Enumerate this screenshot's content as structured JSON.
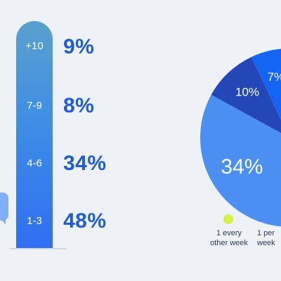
{
  "chart_data": [
    {
      "type": "bar",
      "categories": [
        "+10",
        "7-9",
        "4-6",
        "1-3"
      ],
      "values": [
        9,
        8,
        34,
        48
      ],
      "value_labels": [
        "9%",
        "8%",
        "34%",
        "48%"
      ],
      "title": "",
      "xlabel": "",
      "ylabel": "",
      "grid": false,
      "colors": {
        "bar_top": "#5aa0cf",
        "bar_bottom": "#2f6ff2",
        "label": "#1f5dd6"
      }
    },
    {
      "type": "pie",
      "slices": [
        {
          "label": "1 per week",
          "value": 34,
          "value_label": "34%",
          "color": "#4b8ff2"
        },
        {
          "label": "",
          "value": 10,
          "value_label": "10%",
          "color": "#2447b8"
        },
        {
          "label": "",
          "value": 7,
          "value_label": "7%",
          "color": "#1565f5"
        }
      ],
      "legend": [
        {
          "lines": [
            "1 every",
            "other week"
          ],
          "color": "#d9ef4a"
        },
        {
          "lines": [
            "1 per",
            "week"
          ],
          "color": "#4b8ff2"
        }
      ],
      "legend_placement": "bottom"
    }
  ]
}
